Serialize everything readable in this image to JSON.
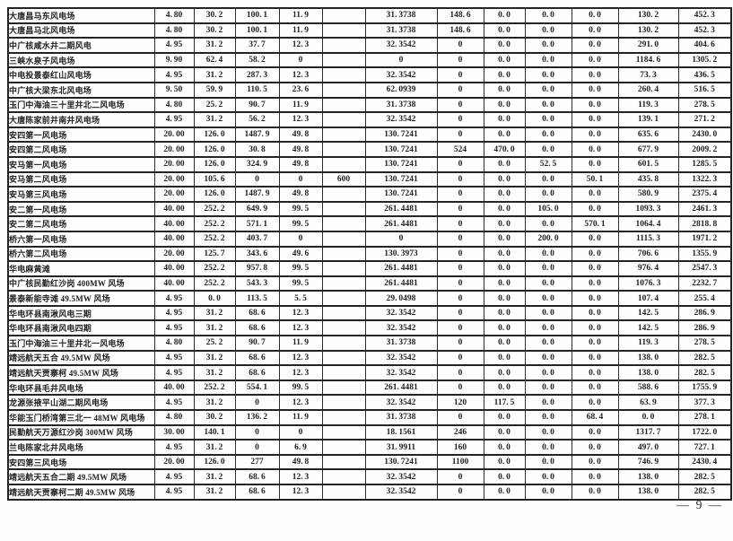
{
  "page": {
    "footer": {
      "page_number": "9",
      "display": "— 9 —"
    }
  },
  "table": {
    "column_count": 13,
    "rows": [
      {
        "name": "大唐昌马东风电场",
        "values": [
          "4.80",
          "30.2",
          "100.1",
          "11.9",
          "",
          "31.3738",
          "148.6",
          "0.0",
          "0.0",
          "0.0",
          "130.2",
          "452.3"
        ]
      },
      {
        "name": "大唐昌马北风电场",
        "values": [
          "4.80",
          "30.2",
          "100.1",
          "11.9",
          "",
          "31.3738",
          "148.6",
          "0.0",
          "0.0",
          "0.0",
          "130.2",
          "452.3"
        ]
      },
      {
        "name": "中广核咸水井二期风电",
        "values": [
          "4.95",
          "31.2",
          "37.7",
          "12.3",
          "",
          "32.3542",
          "0",
          "0.0",
          "0.0",
          "0.0",
          "291.0",
          "404.6"
        ]
      },
      {
        "name": "三峡水泉子风电场",
        "values": [
          "9.90",
          "62.4",
          "58.2",
          "0",
          "",
          "0",
          "0",
          "0.0",
          "0.0",
          "0.0",
          "1184.6",
          "1305.2"
        ]
      },
      {
        "name": "中电投景泰红山风电场",
        "values": [
          "4.95",
          "31.2",
          "287.3",
          "12.3",
          "",
          "32.3542",
          "0",
          "0.0",
          "0.0",
          "0.0",
          "73.3",
          "436.5"
        ]
      },
      {
        "name": "中广核大梁东北风电场",
        "values": [
          "9.50",
          "59.9",
          "110.5",
          "23.6",
          "",
          "62.0939",
          "0",
          "0.0",
          "0.0",
          "0.0",
          "260.4",
          "516.5"
        ]
      },
      {
        "name": "玉门中海油三十里井北二风电场",
        "values": [
          "4.80",
          "25.2",
          "90.7",
          "11.9",
          "",
          "31.3738",
          "0",
          "0.0",
          "0.0",
          "0.0",
          "119.3",
          "278.5"
        ]
      },
      {
        "name": "大唐陈家前井南井风电场",
        "values": [
          "4.95",
          "31.2",
          "56.2",
          "12.3",
          "",
          "32.3542",
          "0",
          "0.0",
          "0.0",
          "0.0",
          "139.1",
          "271.2"
        ]
      },
      {
        "name": "安四第一风电场",
        "values": [
          "20.00",
          "126.0",
          "1487.9",
          "49.8",
          "",
          "130.7241",
          "0",
          "0.0",
          "0.0",
          "0.0",
          "635.6",
          "2430.0"
        ]
      },
      {
        "name": "安四第二风电场",
        "values": [
          "20.00",
          "126.0",
          "30.8",
          "49.8",
          "",
          "130.7241",
          "524",
          "470.0",
          "0.0",
          "0.0",
          "677.9",
          "2009.2"
        ]
      },
      {
        "name": "安马第一风电场",
        "values": [
          "20.00",
          "126.0",
          "324.9",
          "49.8",
          "",
          "130.7241",
          "0",
          "0.0",
          "52.5",
          "0.0",
          "601.5",
          "1285.5"
        ]
      },
      {
        "name": "安马第二风电场",
        "values": [
          "20.00",
          "105.6",
          "0",
          "0",
          "600",
          "130.7241",
          "0",
          "0.0",
          "0.0",
          "50.1",
          "435.8",
          "1322.3"
        ]
      },
      {
        "name": "安马第三风电场",
        "values": [
          "20.00",
          "126.0",
          "1487.9",
          "49.8",
          "",
          "130.7241",
          "0",
          "0.0",
          "0.0",
          "0.0",
          "580.9",
          "2375.4"
        ]
      },
      {
        "name": "安二第一风电场",
        "values": [
          "40.00",
          "252.2",
          "649.9",
          "99.5",
          "",
          "261.4481",
          "0",
          "0.0",
          "105.0",
          "0.0",
          "1093.3",
          "2461.3"
        ]
      },
      {
        "name": "安二第二风电场",
        "values": [
          "40.00",
          "252.2",
          "571.1",
          "99.5",
          "",
          "261.4481",
          "0",
          "0.0",
          "0.0",
          "570.1",
          "1064.4",
          "2818.8"
        ]
      },
      {
        "name": "桥六第一风电场",
        "values": [
          "40.00",
          "252.2",
          "403.7",
          "0",
          "",
          "0",
          "0",
          "0.0",
          "200.0",
          "0.0",
          "1115.3",
          "1971.2"
        ]
      },
      {
        "name": "桥六第二风电场",
        "values": [
          "20.00",
          "125.7",
          "343.6",
          "49.6",
          "",
          "130.3973",
          "0",
          "0.0",
          "0.0",
          "0.0",
          "706.6",
          "1355.9"
        ]
      },
      {
        "name": "华电麻黄滩",
        "values": [
          "40.00",
          "252.2",
          "957.8",
          "99.5",
          "",
          "261.4481",
          "0",
          "0.0",
          "0.0",
          "0.0",
          "976.4",
          "2547.3"
        ]
      },
      {
        "name": "中广核民勤红沙岗 400MW 风场",
        "values": [
          "40.00",
          "252.2",
          "543.3",
          "99.5",
          "",
          "261.4481",
          "0",
          "0.0",
          "0.0",
          "0.0",
          "1076.3",
          "2232.7"
        ]
      },
      {
        "name": "景泰新能寺滩 49.5MW 风场",
        "values": [
          "4.95",
          "0.0",
          "113.5",
          "5.5",
          "",
          "29.0498",
          "0",
          "0.0",
          "0.0",
          "0.0",
          "107.4",
          "255.4"
        ]
      },
      {
        "name": "华电环县南湫风电三期",
        "values": [
          "4.95",
          "31.2",
          "68.6",
          "12.3",
          "",
          "32.3542",
          "0",
          "0.0",
          "0.0",
          "0.0",
          "142.5",
          "286.9"
        ]
      },
      {
        "name": "华电环县南湫风电四期",
        "values": [
          "4.95",
          "31.2",
          "68.6",
          "12.3",
          "",
          "32.3542",
          "0",
          "0.0",
          "0.0",
          "0.0",
          "142.5",
          "286.9"
        ]
      },
      {
        "name": "玉门中海油三十里井北一风电场",
        "values": [
          "4.80",
          "25.2",
          "90.7",
          "11.9",
          "",
          "31.3738",
          "0",
          "0.0",
          "0.0",
          "0.0",
          "119.3",
          "278.5"
        ]
      },
      {
        "name": "靖远航天五合 49.5MW 风场",
        "values": [
          "4.95",
          "31.2",
          "68.6",
          "12.3",
          "",
          "32.3542",
          "0",
          "0.0",
          "0.0",
          "0.0",
          "138.0",
          "282.5"
        ]
      },
      {
        "name": "靖远航天贾寨柯 49.5MW 风场",
        "values": [
          "4.95",
          "31.2",
          "68.6",
          "12.3",
          "",
          "32.3542",
          "0",
          "0.0",
          "0.0",
          "0.0",
          "138.0",
          "282.5"
        ]
      },
      {
        "name": "华电环县毛井风电场",
        "values": [
          "40.00",
          "252.2",
          "554.1",
          "99.5",
          "",
          "261.4481",
          "0",
          "0.0",
          "0.0",
          "0.0",
          "588.6",
          "1755.9"
        ]
      },
      {
        "name": "龙源张掖平山湖二期风电场",
        "values": [
          "4.95",
          "31.2",
          "0",
          "12.3",
          "",
          "32.3542",
          "120",
          "117.5",
          "0.0",
          "0.0",
          "63.9",
          "377.3"
        ]
      },
      {
        "name": "华能玉门桥湾第三北一 48MW 风电场",
        "values": [
          "4.80",
          "30.2",
          "136.2",
          "11.9",
          "",
          "31.3738",
          "0",
          "0.0",
          "0.0",
          "68.4",
          "0.0",
          "278.1"
        ]
      },
      {
        "name": "民勤航天万源红沙岗 300MW 风场",
        "values": [
          "30.00",
          "140.1",
          "0",
          "0",
          "",
          "18.1561",
          "246",
          "0.0",
          "0.0",
          "0.0",
          "1317.7",
          "1722.0"
        ]
      },
      {
        "name": "兰电陈家北井风电场",
        "values": [
          "4.95",
          "31.2",
          "0",
          "6.9",
          "",
          "31.9911",
          "160",
          "0.0",
          "0.0",
          "0.0",
          "497.0",
          "727.1"
        ]
      },
      {
        "name": "安四第三风电场",
        "values": [
          "20.00",
          "126.0",
          "277",
          "49.8",
          "",
          "130.7241",
          "1100",
          "0.0",
          "0.0",
          "0.0",
          "746.9",
          "2430.4"
        ]
      },
      {
        "name": "靖远航天五合二期 49.5MW 风场",
        "values": [
          "4.95",
          "31.2",
          "68.6",
          "12.3",
          "",
          "32.3542",
          "0",
          "0.0",
          "0.0",
          "0.0",
          "138.0",
          "282.5"
        ]
      },
      {
        "name": "靖远航天贾寨柯二期 49.5MW 风场",
        "values": [
          "4.95",
          "31.2",
          "68.6",
          "12.3",
          "",
          "32.3542",
          "0",
          "0.0",
          "0.0",
          "0.0",
          "138.0",
          "282.5"
        ]
      }
    ]
  }
}
